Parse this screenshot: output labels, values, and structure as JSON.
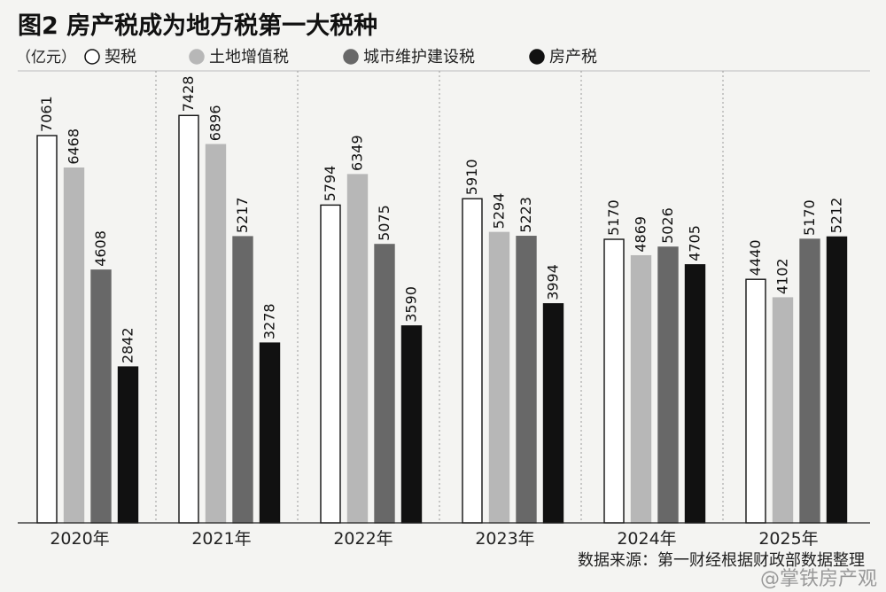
{
  "chart_data": {
    "type": "bar",
    "title": "图2 房产税成为地方税第一大税种",
    "unit": "（亿元）",
    "categories": [
      "2020年",
      "2021年",
      "2022年",
      "2023年",
      "2024年",
      "2025年"
    ],
    "series": [
      {
        "name": "契税",
        "values": [
          7061,
          7428,
          5794,
          5910,
          5170,
          4440
        ],
        "fill": "#ffffff",
        "stroke": "#111111"
      },
      {
        "name": "土地增值税",
        "values": [
          6468,
          6896,
          6349,
          5294,
          4869,
          4102
        ],
        "fill": "#b7b7b7",
        "stroke": "#b7b7b7"
      },
      {
        "name": "城市维护建设税",
        "values": [
          4608,
          5217,
          5075,
          5223,
          5026,
          5170
        ],
        "fill": "#686868",
        "stroke": "#686868"
      },
      {
        "name": "房产税",
        "values": [
          2842,
          3278,
          3590,
          3994,
          4705,
          5212
        ],
        "fill": "#111111",
        "stroke": "#111111"
      }
    ],
    "ylim": [
      0,
      7500
    ],
    "grid": "vertical dotted separators between years",
    "legend_position": "top-left",
    "source": "数据来源：第一财经根据财政部数据整理"
  },
  "watermark": "@掌铁房产观"
}
